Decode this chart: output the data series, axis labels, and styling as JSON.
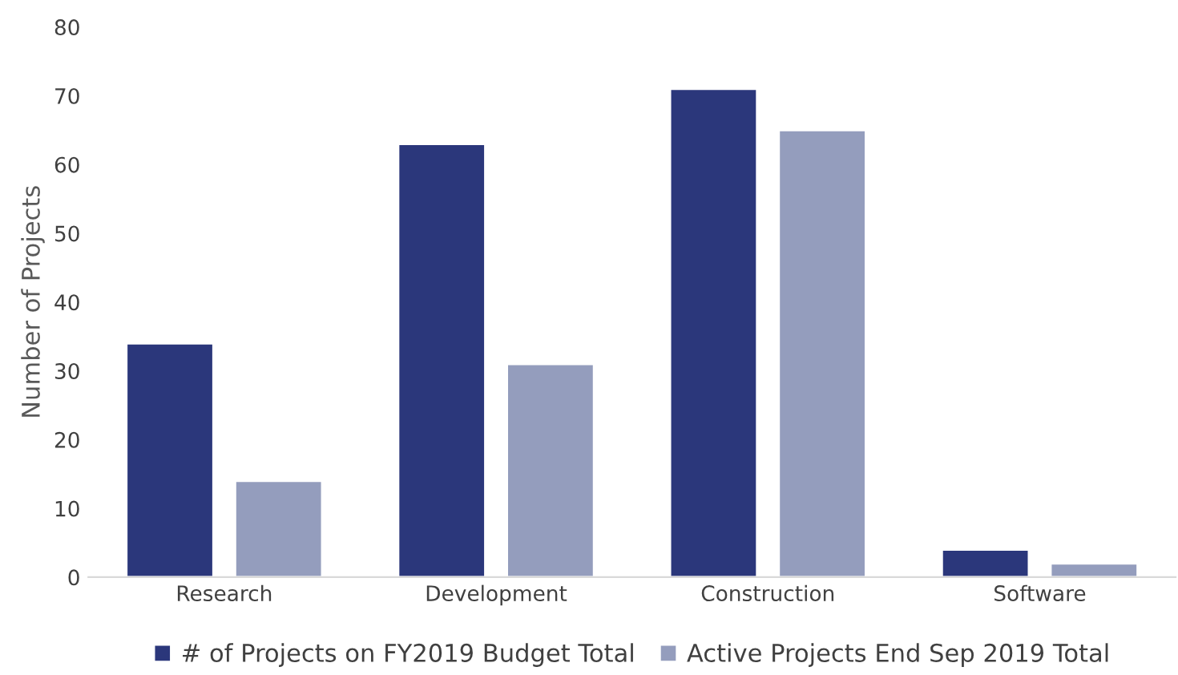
{
  "chart_data": {
    "type": "bar",
    "ylabel": "Number of Projects",
    "categories": [
      "Research",
      "Development",
      "Construction",
      "Software"
    ],
    "series": [
      {
        "name": "# of Projects on FY2019 Budget Total",
        "color": "#2b377b",
        "values": [
          34,
          63,
          71,
          4
        ]
      },
      {
        "name": "Active Projects End Sep 2019 Total",
        "color": "#949dbd",
        "values": [
          14,
          31,
          65,
          2
        ]
      }
    ],
    "ylim": [
      0,
      80
    ],
    "yticks": [
      0,
      10,
      20,
      30,
      40,
      50,
      60,
      70,
      80
    ],
    "grid": false,
    "legend": "bottom"
  }
}
